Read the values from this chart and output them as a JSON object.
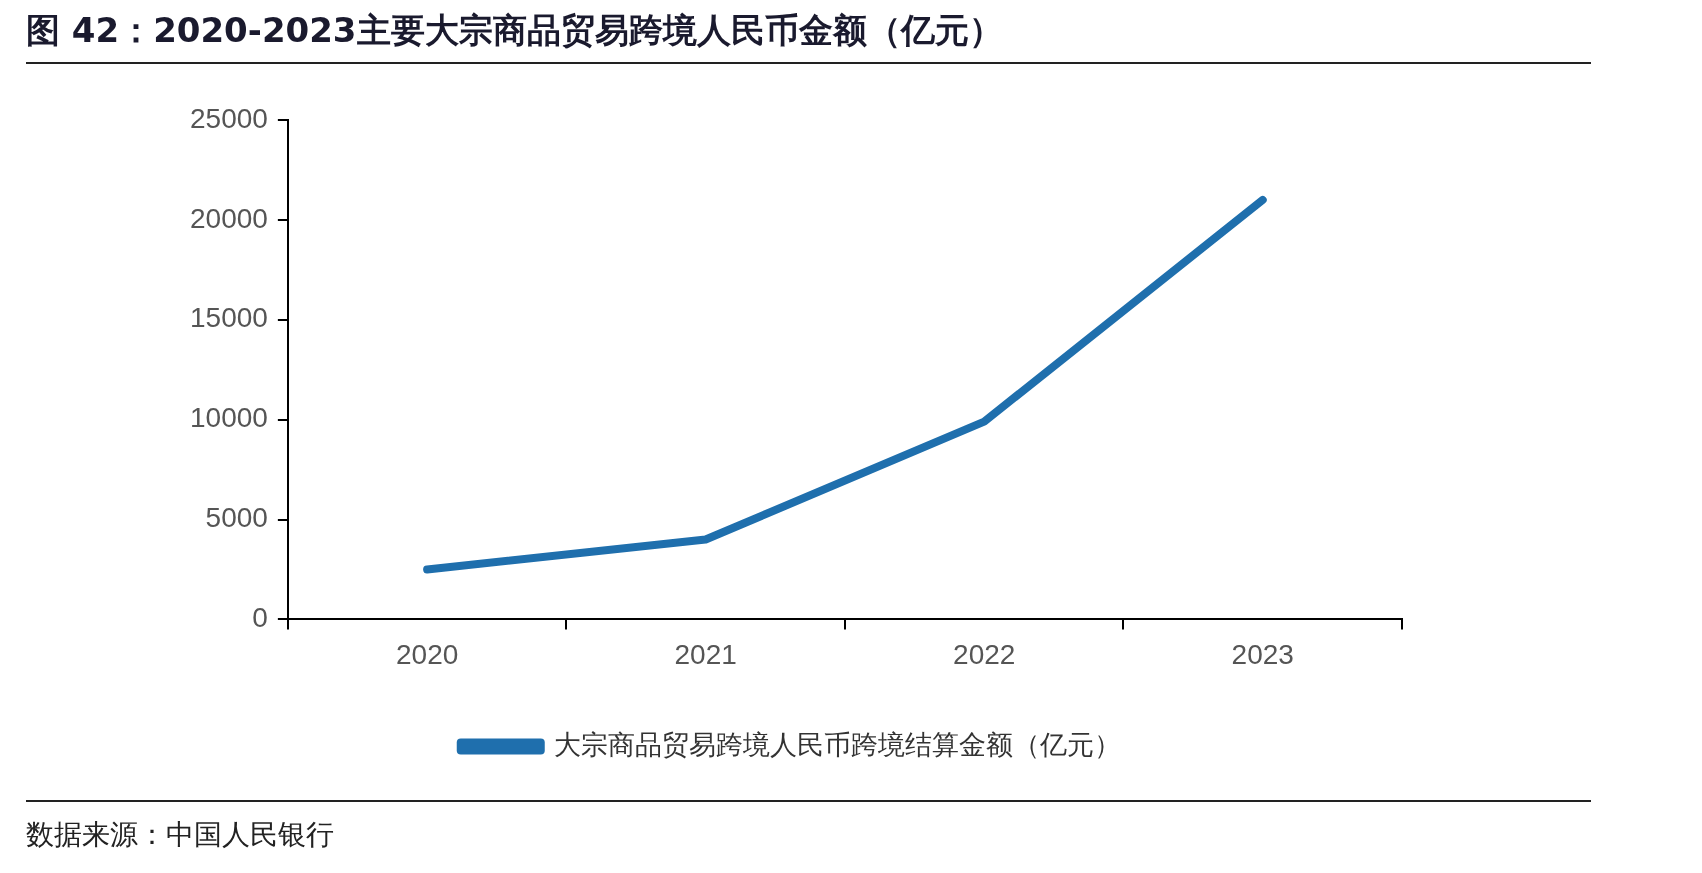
{
  "chart_data": {
    "type": "line",
    "title": "图 42：2020-2023主要大宗商品贸易跨境人民币金额（亿元）",
    "categories": [
      "2020",
      "2021",
      "2022",
      "2023"
    ],
    "series": [
      {
        "name": "大宗商品贸易跨境人民币跨境结算金额（亿元）",
        "color": "#1f6fad",
        "values": [
          2500,
          4000,
          9900,
          21000
        ]
      }
    ],
    "ylim": [
      0,
      25000
    ],
    "yticks": [
      0,
      5000,
      10000,
      15000,
      20000,
      25000
    ],
    "legend": "bottom",
    "line_style": "solid",
    "annotations": [
      "数据来源：中国人民银行"
    ]
  }
}
